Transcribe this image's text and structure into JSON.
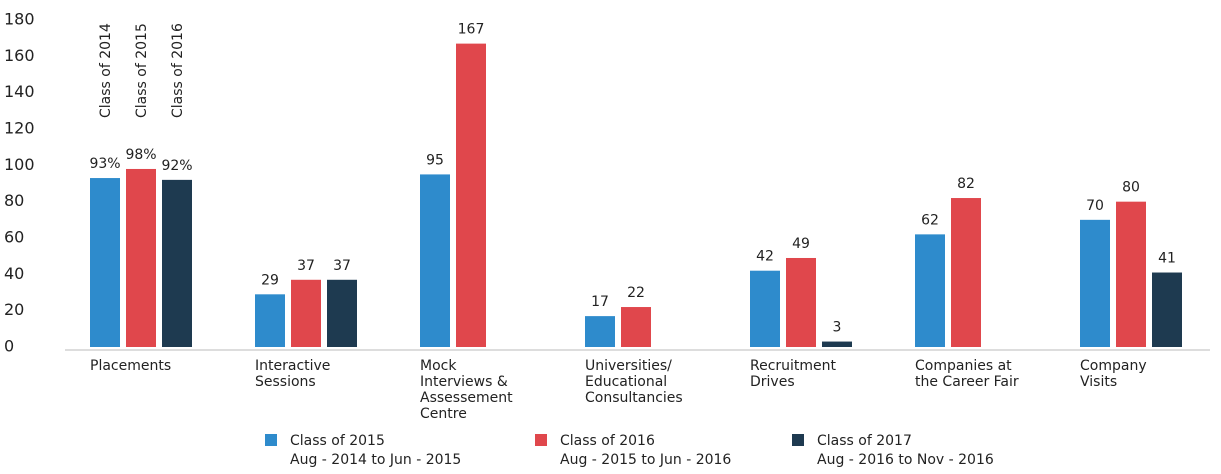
{
  "chart_data": {
    "type": "bar",
    "categories": [
      [
        "Placements"
      ],
      [
        "Interactive",
        "Sessions"
      ],
      [
        "Mock",
        "Interviews &",
        "Assessement",
        "Centre"
      ],
      [
        "Universities/",
        "Educational",
        "Consultancies"
      ],
      [
        "Recruitment",
        "Drives"
      ],
      [
        "Companies at",
        "the Career Fair"
      ],
      [
        "Company",
        "Visits"
      ]
    ],
    "series": [
      {
        "name": "Class of 2015",
        "period": "Aug - 2014 to Jun - 2015",
        "color": "#2e8bcc",
        "values": [
          93,
          29,
          95,
          17,
          42,
          62,
          70
        ],
        "value_labels": [
          "93%",
          null,
          null,
          null,
          null,
          null,
          null
        ]
      },
      {
        "name": "Class of 2016",
        "period": "Aug - 2015 to Jun - 2016",
        "color": "#e0474c",
        "values": [
          98,
          37,
          167,
          22,
          49,
          82,
          80
        ],
        "value_labels": [
          "98%",
          null,
          null,
          null,
          null,
          null,
          null
        ]
      },
      {
        "name": "Class of 2017",
        "period": "Aug - 2016 to Nov - 2016",
        "color": "#1e3a50",
        "values": [
          92,
          37,
          null,
          null,
          3,
          null,
          41
        ],
        "value_labels": [
          "92%",
          null,
          null,
          null,
          null,
          null,
          null
        ]
      }
    ],
    "annotations": [
      "Class of 2014",
      "Class of 2015",
      "Class of 2016"
    ],
    "ylim": [
      0,
      180
    ],
    "yticks": [
      0,
      20,
      40,
      60,
      80,
      100,
      120,
      140,
      160,
      180
    ],
    "grid": false,
    "legend": "bottom"
  }
}
